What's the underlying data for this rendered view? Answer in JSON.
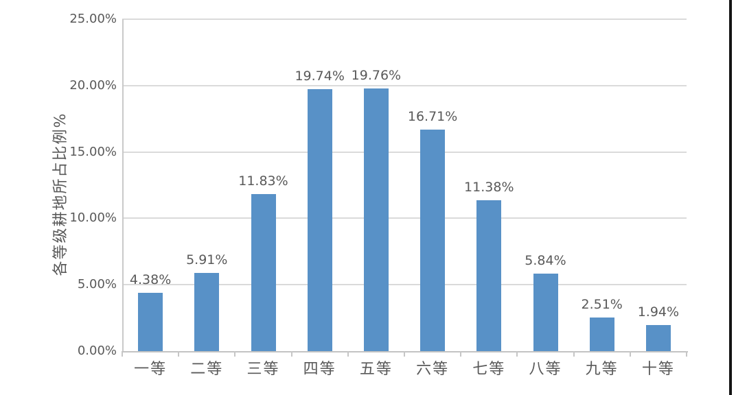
{
  "chart_data": {
    "type": "bar",
    "categories": [
      "一等",
      "二等",
      "三等",
      "四等",
      "五等",
      "六等",
      "七等",
      "八等",
      "九等",
      "十等"
    ],
    "values": [
      4.38,
      5.91,
      11.83,
      19.74,
      19.76,
      16.71,
      11.38,
      5.84,
      2.51,
      1.94
    ],
    "value_labels": [
      "4.38%",
      "5.91%",
      "11.83%",
      "19.74%",
      "19.76%",
      "16.71%",
      "11.38%",
      "5.84%",
      "2.51%",
      "1.94%"
    ],
    "title": "",
    "xlabel": "",
    "ylabel": "各等级耕地所占比例%",
    "ylim": [
      0,
      25
    ],
    "ytick_step": 5,
    "ytick_labels": [
      "0.00%",
      "5.00%",
      "10.00%",
      "15.00%",
      "20.00%",
      "25.00%"
    ],
    "grid": true,
    "legend": false,
    "colors": {
      "bar": "#5891c7",
      "text": "#595959",
      "gridline": "#dadada",
      "axis": "#c6c6c6",
      "background": "#ffffff",
      "screenshot_edge": "#141414"
    }
  }
}
